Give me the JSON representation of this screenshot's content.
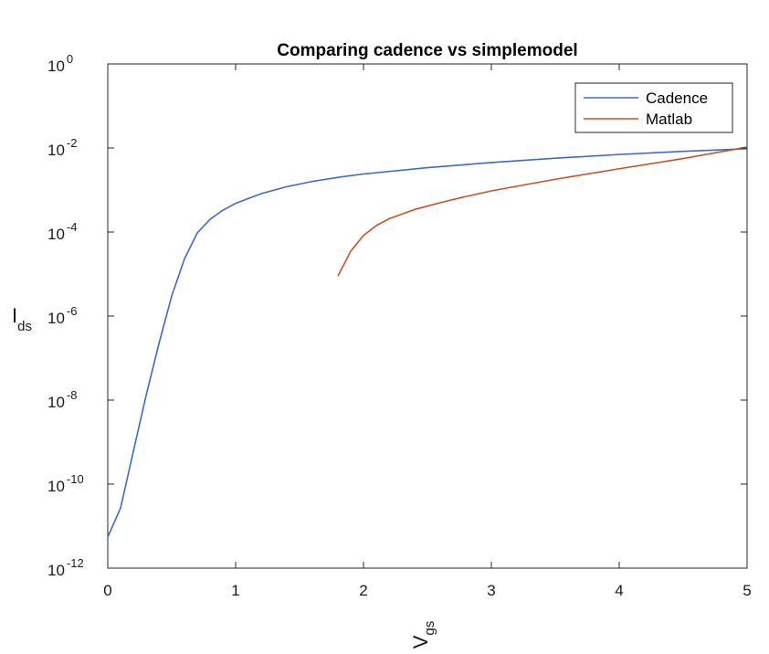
{
  "chart_data": {
    "type": "line",
    "title": "Comparing cadence vs simplemodel",
    "xlabel": {
      "base": "V",
      "sub": "gs"
    },
    "ylabel": {
      "base": "I",
      "sub": "ds"
    },
    "xlim": [
      0,
      5
    ],
    "ylim": [
      1e-12,
      1
    ],
    "yscale": "log",
    "grid": false,
    "legend_position": "top-right",
    "x_ticks": [
      0,
      1,
      2,
      3,
      4,
      5
    ],
    "x_tick_labels": [
      "0",
      "1",
      "2",
      "3",
      "4",
      "5"
    ],
    "y_ticks": [
      {
        "value": 1e-12,
        "base": "10",
        "exp": "-12"
      },
      {
        "value": 1e-10,
        "base": "10",
        "exp": "-10"
      },
      {
        "value": 1e-08,
        "base": "10",
        "exp": "-8"
      },
      {
        "value": 1e-06,
        "base": "10",
        "exp": "-6"
      },
      {
        "value": 0.0001,
        "base": "10",
        "exp": "-4"
      },
      {
        "value": 0.01,
        "base": "10",
        "exp": "-2"
      },
      {
        "value": 1,
        "base": "10",
        "exp": "0"
      }
    ],
    "series": [
      {
        "name": "Cadence",
        "color": "#3d6bbf",
        "x": [
          0,
          0.1,
          0.2,
          0.3,
          0.4,
          0.5,
          0.6,
          0.7,
          0.8,
          0.9,
          1.0,
          1.2,
          1.4,
          1.6,
          1.8,
          2.0,
          2.5,
          3.0,
          3.5,
          4.0,
          4.5,
          5.0
        ],
        "y": [
          5.5e-12,
          2.7e-11,
          6e-10,
          1.3e-08,
          2.2e-07,
          3e-06,
          2.3e-05,
          9.5e-05,
          0.0002,
          0.00033,
          0.00048,
          0.00082,
          0.0012,
          0.0016,
          0.002,
          0.0024,
          0.0034,
          0.0045,
          0.0057,
          0.007,
          0.0083,
          0.0096
        ]
      },
      {
        "name": "Matlab",
        "color": "#c1542a",
        "x": [
          1.8,
          1.9,
          2.0,
          2.1,
          2.2,
          2.4,
          2.6,
          2.8,
          3.0,
          3.5,
          4.0,
          4.5,
          5.0
        ],
        "y": [
          9e-06,
          3.5e-05,
          8.3e-05,
          0.000142,
          0.000206,
          0.000344,
          0.0005,
          0.0007,
          0.00095,
          0.0018,
          0.0032,
          0.0056,
          0.0105
        ]
      }
    ]
  }
}
